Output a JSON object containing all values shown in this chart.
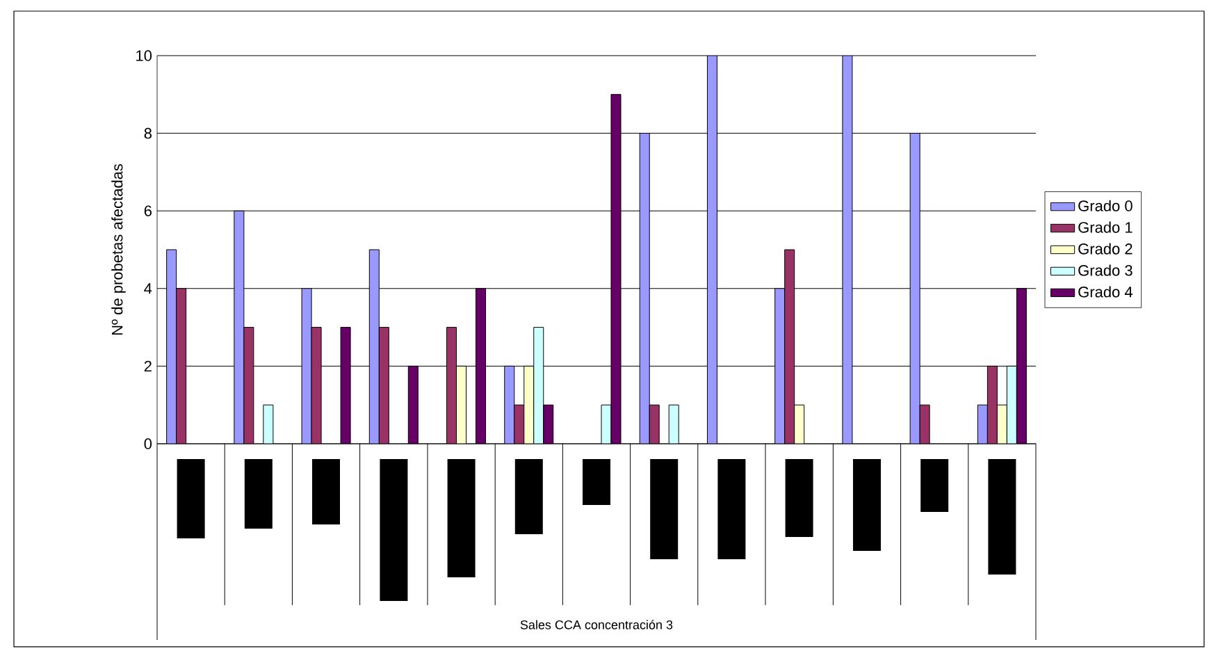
{
  "chart_data": {
    "type": "bar",
    "ylabel": "Nº de probetas afectadas",
    "annotations": [
      "Sales CCA concentración 3"
    ],
    "categories": [
      null,
      null,
      null,
      null,
      null,
      null,
      null,
      null,
      null,
      null,
      null,
      null,
      null
    ],
    "series": [
      {
        "name": "Grado 0",
        "color": "#9999ff",
        "values": [
          5,
          6,
          4,
          5,
          0,
          2,
          0,
          8,
          10,
          4,
          10,
          8,
          1
        ]
      },
      {
        "name": "Grado 1",
        "color": "#993366",
        "values": [
          4,
          3,
          3,
          3,
          3,
          1,
          0,
          1,
          0,
          5,
          0,
          1,
          2
        ]
      },
      {
        "name": "Grado 2",
        "color": "#ffffcc",
        "values": [
          0,
          0,
          0,
          0,
          2,
          2,
          0,
          0,
          0,
          1,
          0,
          0,
          1
        ]
      },
      {
        "name": "Grado 3",
        "color": "#ccffff",
        "values": [
          0,
          1,
          0,
          0,
          0,
          3,
          1,
          1,
          0,
          0,
          0,
          0,
          2
        ]
      },
      {
        "name": "Grado 4",
        "color": "#660066",
        "values": [
          0,
          0,
          3,
          2,
          4,
          1,
          9,
          0,
          0,
          0,
          0,
          0,
          4
        ]
      }
    ],
    "ylim": [
      0,
      10
    ],
    "yticks": [
      0,
      2,
      4,
      6,
      8,
      10
    ],
    "grid": "y",
    "legend": "right"
  }
}
